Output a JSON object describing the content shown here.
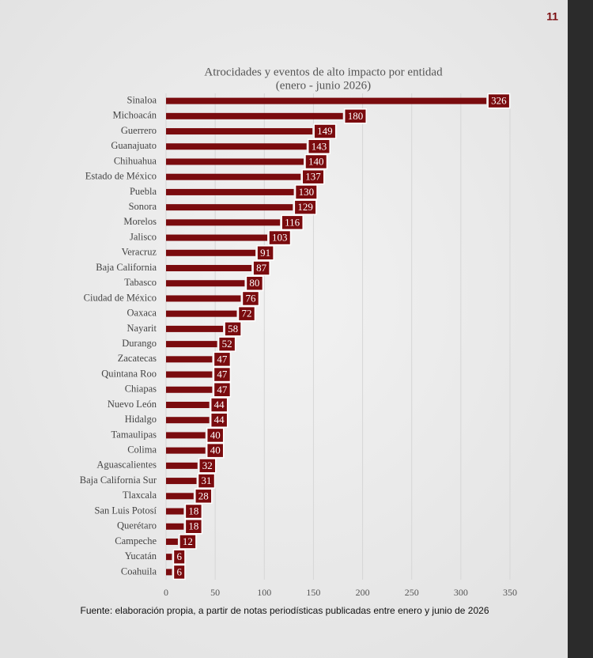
{
  "page_number": "11",
  "source": "Fuente: elaboración propia, a partir de notas periodísticas publicadas entre enero y junio de 2026",
  "chart_data": {
    "type": "hbar",
    "title": "Atrocidades y eventos de alto impacto por entidad",
    "subtitle": "(enero - junio 2026)",
    "categories": [
      "Sinaloa",
      "Michoacán",
      "Guerrero",
      "Guanajuato",
      "Chihuahua",
      "Estado de México",
      "Puebla",
      "Sonora",
      "Morelos",
      "Jalisco",
      "Veracruz",
      "Baja California",
      "Tabasco",
      "Ciudad de México",
      "Oaxaca",
      "Nayarit",
      "Durango",
      "Zacatecas",
      "Quintana Roo",
      "Chiapas",
      "Nuevo León",
      "Hidalgo",
      "Tamaulipas",
      "Colima",
      "Aguascalientes",
      "Baja California Sur",
      "Tlaxcala",
      "San Luis Potosí",
      "Querétaro",
      "Campeche",
      "Yucatán",
      "Coahuila"
    ],
    "values": [
      326,
      180,
      149,
      143,
      140,
      137,
      130,
      129,
      116,
      103,
      91,
      87,
      80,
      76,
      72,
      58,
      52,
      47,
      47,
      47,
      44,
      44,
      40,
      40,
      32,
      31,
      28,
      18,
      18,
      12,
      6,
      6
    ],
    "color": "#7a0b0e",
    "xlim": [
      0,
      350
    ],
    "xticks": [
      0,
      50,
      100,
      150,
      200,
      250,
      300,
      350
    ],
    "grid": true
  }
}
